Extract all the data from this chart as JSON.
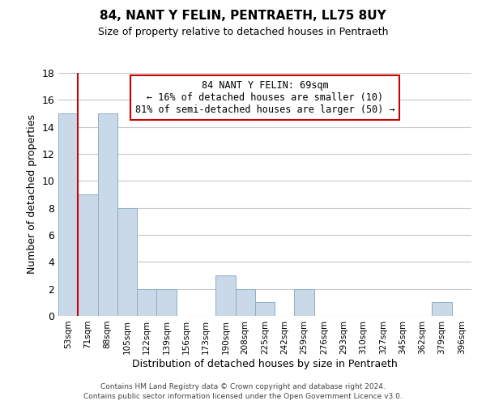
{
  "title": "84, NANT Y FELIN, PENTRAETH, LL75 8UY",
  "subtitle": "Size of property relative to detached houses in Pentraeth",
  "xlabel": "Distribution of detached houses by size in Pentraeth",
  "ylabel": "Number of detached properties",
  "bar_labels": [
    "53sqm",
    "71sqm",
    "88sqm",
    "105sqm",
    "122sqm",
    "139sqm",
    "156sqm",
    "173sqm",
    "190sqm",
    "208sqm",
    "225sqm",
    "242sqm",
    "259sqm",
    "276sqm",
    "293sqm",
    "310sqm",
    "327sqm",
    "345sqm",
    "362sqm",
    "379sqm",
    "396sqm"
  ],
  "bar_values": [
    15,
    9,
    15,
    8,
    2,
    2,
    0,
    0,
    3,
    2,
    1,
    0,
    2,
    0,
    0,
    0,
    0,
    0,
    0,
    1,
    0
  ],
  "bar_color": "#c9d9e8",
  "bar_edge_color": "#8aafc8",
  "ylim": [
    0,
    18
  ],
  "yticks": [
    0,
    2,
    4,
    6,
    8,
    10,
    12,
    14,
    16,
    18
  ],
  "annotation_text": "84 NANT Y FELIN: 69sqm\n← 16% of detached houses are smaller (10)\n81% of semi-detached houses are larger (50) →",
  "footer_line1": "Contains HM Land Registry data © Crown copyright and database right 2024.",
  "footer_line2": "Contains public sector information licensed under the Open Government Licence v3.0.",
  "background_color": "#ffffff",
  "grid_color": "#c8c8c8",
  "red_line_color": "#cc0000",
  "annotation_box_color": "#ffffff",
  "annotation_box_edge": "#cc0000"
}
